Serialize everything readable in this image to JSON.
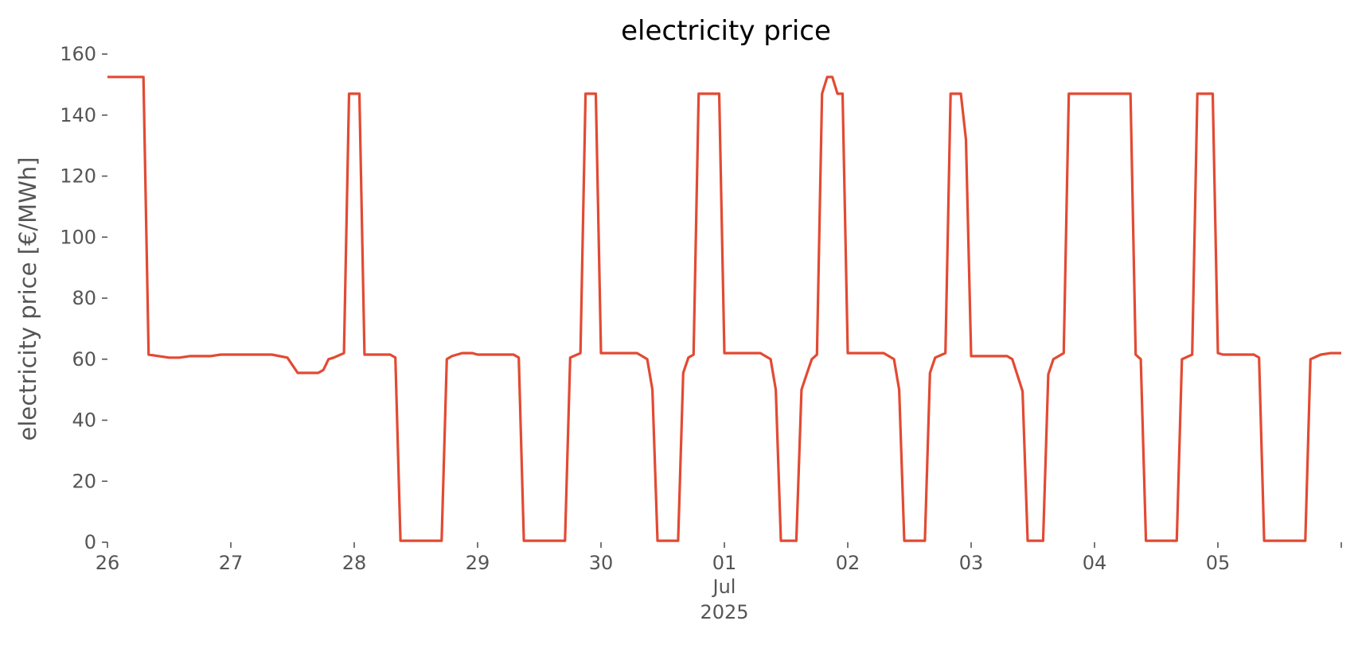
{
  "chart_data": {
    "type": "line",
    "title": "electricity price",
    "xlabel": "",
    "ylabel": "electricity price [€/MWh]",
    "ylim": [
      0,
      160
    ],
    "xlim": [
      "2025-06-26T00:00",
      "2025-07-06T00:00"
    ],
    "grid": false,
    "yticks": [
      0,
      20,
      40,
      60,
      80,
      100,
      120,
      140,
      160
    ],
    "xticks": [
      {
        "date": "2025-06-26",
        "label": "26"
      },
      {
        "date": "2025-06-27",
        "label": "27"
      },
      {
        "date": "2025-06-28",
        "label": "28"
      },
      {
        "date": "2025-06-29",
        "label": "29"
      },
      {
        "date": "2025-06-30",
        "label": "30"
      },
      {
        "date": "2025-07-01",
        "label": "01"
      },
      {
        "date": "2025-07-02",
        "label": "02"
      },
      {
        "date": "2025-07-03",
        "label": "03"
      },
      {
        "date": "2025-07-04",
        "label": "04"
      },
      {
        "date": "2025-07-05",
        "label": "05"
      },
      {
        "date": "2025-07-06",
        "label": ""
      }
    ],
    "x_secondary_labels": [
      "Jul",
      "2025"
    ],
    "color": "#E24A33",
    "series": [
      {
        "points": [
          [
            "2025-06-26T00:00",
            152.5
          ],
          [
            "2025-06-26T07:00",
            152.5
          ],
          [
            "2025-06-26T08:00",
            61.5
          ],
          [
            "2025-06-26T10:00",
            61
          ],
          [
            "2025-06-26T12:00",
            60.5
          ],
          [
            "2025-06-26T14:00",
            60.5
          ],
          [
            "2025-06-26T16:00",
            61
          ],
          [
            "2025-06-26T20:00",
            61
          ],
          [
            "2025-06-26T22:00",
            61.5
          ],
          [
            "2025-06-27T06:00",
            61.5
          ],
          [
            "2025-06-27T08:00",
            61.5
          ],
          [
            "2025-06-27T11:00",
            60.5
          ],
          [
            "2025-06-27T13:00",
            55.5
          ],
          [
            "2025-06-27T17:00",
            55.5
          ],
          [
            "2025-06-27T18:00",
            56.5
          ],
          [
            "2025-06-27T19:00",
            60
          ],
          [
            "2025-06-27T20:00",
            60.5
          ],
          [
            "2025-06-27T22:00",
            62
          ],
          [
            "2025-06-27T23:00",
            147
          ],
          [
            "2025-06-28T01:00",
            147
          ],
          [
            "2025-06-28T02:00",
            61.5
          ],
          [
            "2025-06-28T07:00",
            61.5
          ],
          [
            "2025-06-28T08:00",
            60.5
          ],
          [
            "2025-06-28T09:00",
            0.5
          ],
          [
            "2025-06-28T17:00",
            0.5
          ],
          [
            "2025-06-28T18:00",
            60
          ],
          [
            "2025-06-28T19:00",
            61
          ],
          [
            "2025-06-28T21:00",
            62
          ],
          [
            "2025-06-28T23:00",
            62
          ],
          [
            "2025-06-29T00:00",
            61.5
          ],
          [
            "2025-06-29T07:00",
            61.5
          ],
          [
            "2025-06-29T08:00",
            60.5
          ],
          [
            "2025-06-29T09:00",
            0.5
          ],
          [
            "2025-06-29T17:00",
            0.5
          ],
          [
            "2025-06-29T18:00",
            60.5
          ],
          [
            "2025-06-29T20:00",
            62
          ],
          [
            "2025-06-29T21:00",
            147
          ],
          [
            "2025-06-29T23:00",
            147
          ],
          [
            "2025-06-30T00:00",
            62
          ],
          [
            "2025-06-30T07:00",
            62
          ],
          [
            "2025-06-30T08:00",
            61
          ],
          [
            "2025-06-30T09:00",
            60
          ],
          [
            "2025-06-30T10:00",
            50
          ],
          [
            "2025-06-30T11:00",
            0.5
          ],
          [
            "2025-06-30T15:00",
            0.5
          ],
          [
            "2025-06-30T16:00",
            55.5
          ],
          [
            "2025-06-30T17:00",
            60.5
          ],
          [
            "2025-06-30T18:00",
            61.5
          ],
          [
            "2025-06-30T19:00",
            147
          ],
          [
            "2025-06-30T23:00",
            147
          ],
          [
            "2025-07-01T00:00",
            62
          ],
          [
            "2025-07-01T07:00",
            62
          ],
          [
            "2025-07-01T09:00",
            60
          ],
          [
            "2025-07-01T10:00",
            50
          ],
          [
            "2025-07-01T11:00",
            0.5
          ],
          [
            "2025-07-01T14:00",
            0.5
          ],
          [
            "2025-07-01T15:00",
            50
          ],
          [
            "2025-07-01T16:00",
            55
          ],
          [
            "2025-07-01T17:00",
            60
          ],
          [
            "2025-07-01T18:00",
            61.5
          ],
          [
            "2025-07-01T19:00",
            147
          ],
          [
            "2025-07-01T20:00",
            152.5
          ],
          [
            "2025-07-01T21:00",
            152.5
          ],
          [
            "2025-07-01T22:00",
            147
          ],
          [
            "2025-07-01T23:00",
            147
          ],
          [
            "2025-07-02T00:00",
            62
          ],
          [
            "2025-07-02T07:00",
            62
          ],
          [
            "2025-07-02T09:00",
            60
          ],
          [
            "2025-07-02T10:00",
            50
          ],
          [
            "2025-07-02T11:00",
            0.5
          ],
          [
            "2025-07-02T15:00",
            0.5
          ],
          [
            "2025-07-02T16:00",
            55.5
          ],
          [
            "2025-07-02T17:00",
            60.5
          ],
          [
            "2025-07-02T19:00",
            62
          ],
          [
            "2025-07-02T20:00",
            147
          ],
          [
            "2025-07-02T22:00",
            147
          ],
          [
            "2025-07-02T23:00",
            132
          ],
          [
            "2025-07-03T00:00",
            61
          ],
          [
            "2025-07-03T07:00",
            61
          ],
          [
            "2025-07-03T08:00",
            60
          ],
          [
            "2025-07-03T10:00",
            49.5
          ],
          [
            "2025-07-03T11:00",
            0.5
          ],
          [
            "2025-07-03T14:00",
            0.5
          ],
          [
            "2025-07-03T15:00",
            55
          ],
          [
            "2025-07-03T16:00",
            60
          ],
          [
            "2025-07-03T18:00",
            62
          ],
          [
            "2025-07-03T19:00",
            147
          ],
          [
            "2025-07-04T07:00",
            147
          ],
          [
            "2025-07-04T08:00",
            61.5
          ],
          [
            "2025-07-04T09:00",
            60
          ],
          [
            "2025-07-04T10:00",
            0.5
          ],
          [
            "2025-07-04T16:00",
            0.5
          ],
          [
            "2025-07-04T17:00",
            60
          ],
          [
            "2025-07-04T19:00",
            61.5
          ],
          [
            "2025-07-04T20:00",
            147
          ],
          [
            "2025-07-04T23:00",
            147
          ],
          [
            "2025-07-05T00:00",
            62
          ],
          [
            "2025-07-05T01:00",
            61.5
          ],
          [
            "2025-07-05T07:00",
            61.5
          ],
          [
            "2025-07-05T08:00",
            60.5
          ],
          [
            "2025-07-05T09:00",
            0.5
          ],
          [
            "2025-07-05T17:00",
            0.5
          ],
          [
            "2025-07-05T18:00",
            60
          ],
          [
            "2025-07-05T20:00",
            61.5
          ],
          [
            "2025-07-05T22:00",
            62
          ],
          [
            "2025-07-06T00:00",
            62
          ]
        ]
      }
    ]
  }
}
